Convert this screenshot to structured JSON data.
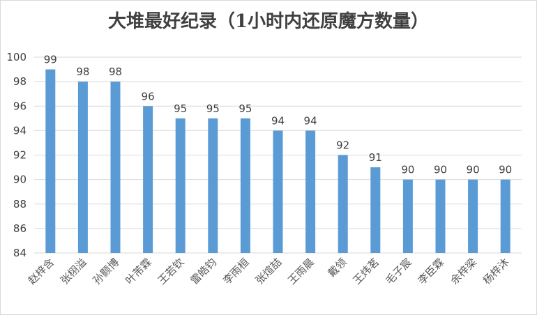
{
  "chart_data": {
    "type": "bar",
    "title": "大堆最好纪录（1小时内还原魔方数量）",
    "categories": [
      "赵梓含",
      "张栩溢",
      "孙颢博",
      "叶芾霖",
      "王若钦",
      "雷皓钧",
      "李雨桓",
      "张煊喆",
      "王雨晨",
      "戴领",
      "王炜茗",
      "毛子宸",
      "李臣霖",
      "余梓梁",
      "杨梓沐"
    ],
    "values": [
      99,
      98,
      98,
      96,
      95,
      95,
      95,
      94,
      94,
      92,
      91,
      90,
      90,
      90,
      90
    ],
    "ylim": [
      84,
      100
    ],
    "yticks": [
      84,
      86,
      88,
      90,
      92,
      94,
      96,
      98,
      100
    ],
    "grid": true,
    "bar_color": "#5b9bd5",
    "grid_color": "#d9d9d9",
    "xlabel": "",
    "ylabel": ""
  }
}
